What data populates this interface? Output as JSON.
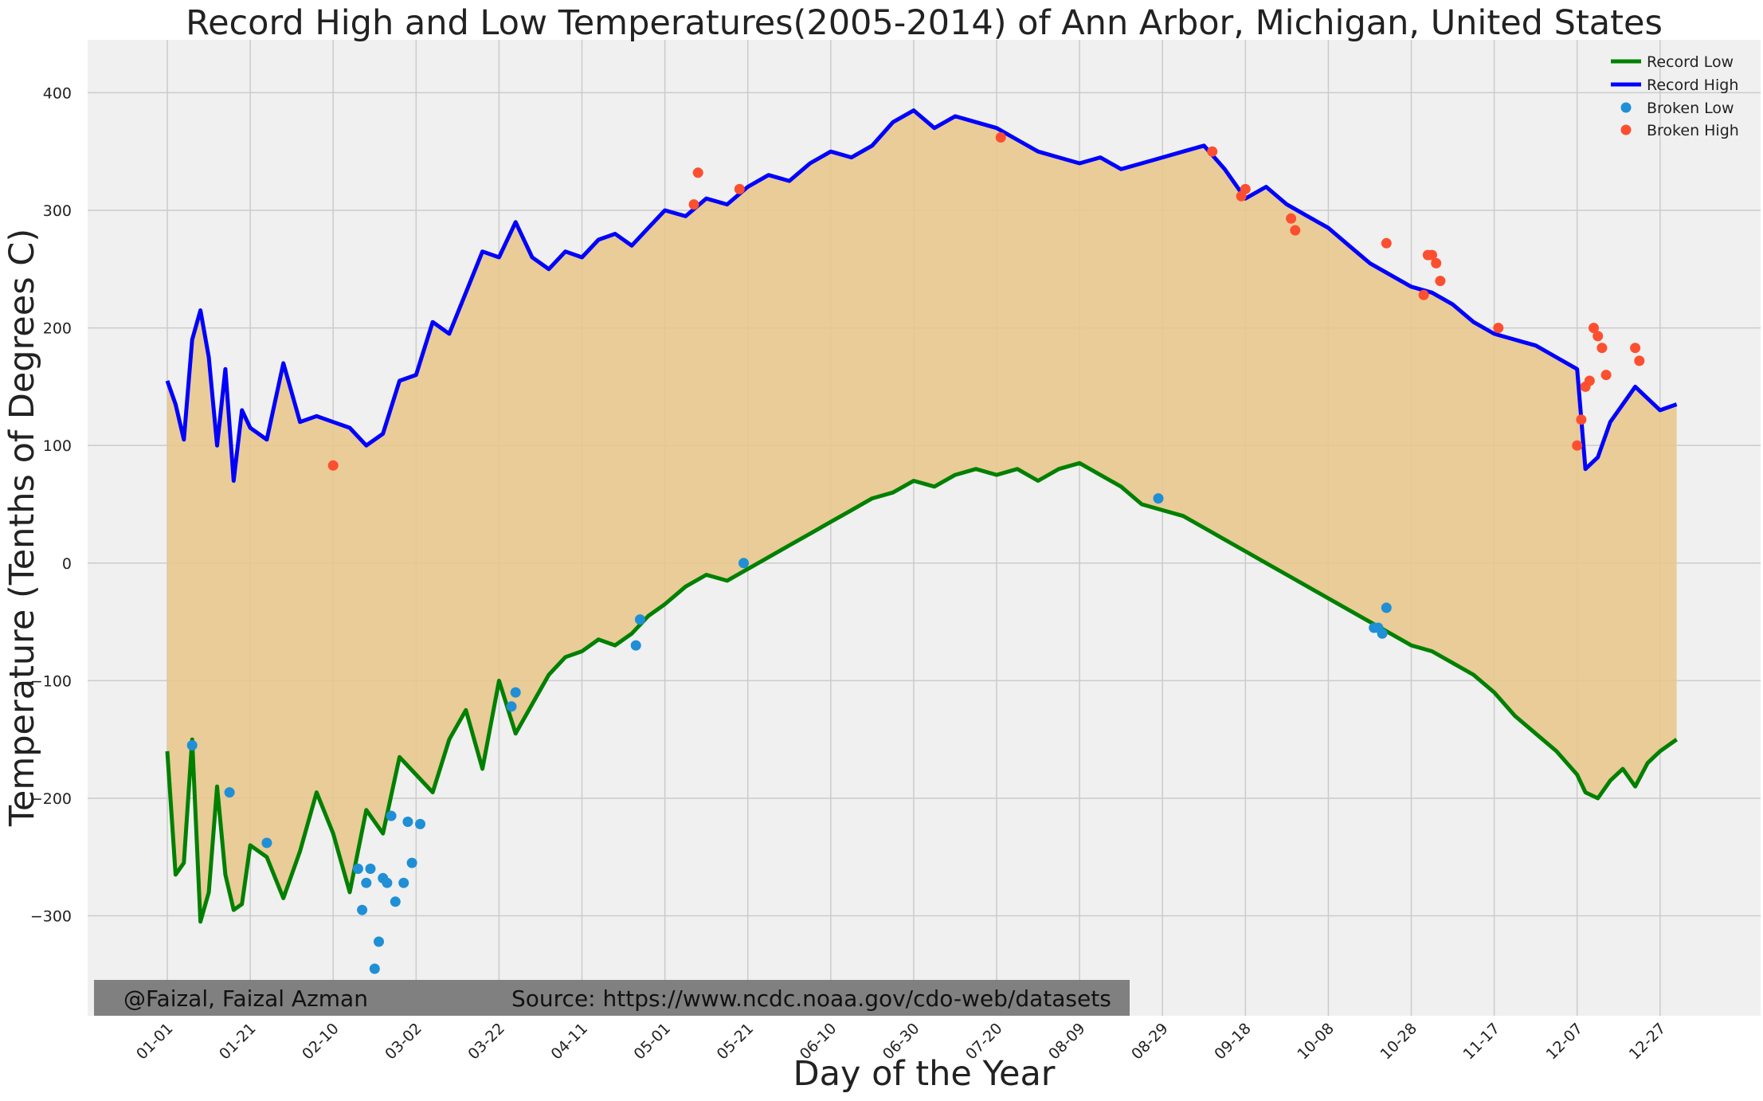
{
  "chart_data": {
    "type": "line",
    "title": "Record High and Low Temperatures(2005-2014) of Ann Arbor, Michigan, United States",
    "xlabel": "Day of the Year",
    "ylabel": "Temperature (Tenths of Degrees C)",
    "ylim": [
      -385,
      445
    ],
    "yticks": [
      -300,
      -200,
      -100,
      0,
      100,
      200,
      300,
      400
    ],
    "ytick_labels": [
      "−300",
      "−200",
      "−100",
      "0",
      "100",
      "200",
      "300",
      "400"
    ],
    "xlim": [
      "12-28 (prev)",
      "01-08 (next)"
    ],
    "xticks": [
      "01-01",
      "01-21",
      "02-10",
      "03-02",
      "03-22",
      "04-11",
      "05-01",
      "05-21",
      "06-10",
      "06-30",
      "07-20",
      "08-09",
      "08-29",
      "09-18",
      "10-08",
      "10-28",
      "11-17",
      "12-07",
      "12-27"
    ],
    "grid": true,
    "fill_between": {
      "between": [
        "Record Low",
        "Record High"
      ],
      "color": "#e8c88e"
    },
    "legend": {
      "position": "top-right",
      "entries": [
        "Record Low",
        "Record High",
        "Broken Low",
        "Broken High"
      ]
    },
    "series": [
      {
        "name": "Record Low",
        "kind": "line",
        "color": "#008000",
        "x": [
          "01-01",
          "01-03",
          "01-05",
          "01-07",
          "01-09",
          "01-11",
          "01-13",
          "01-15",
          "01-17",
          "01-19",
          "01-21",
          "01-25",
          "01-29",
          "02-02",
          "02-06",
          "02-10",
          "02-14",
          "02-18",
          "02-22",
          "02-26",
          "03-02",
          "03-06",
          "03-10",
          "03-14",
          "03-18",
          "03-22",
          "03-26",
          "03-30",
          "04-03",
          "04-07",
          "04-11",
          "04-15",
          "04-19",
          "04-23",
          "04-27",
          "05-01",
          "05-06",
          "05-11",
          "05-16",
          "05-21",
          "05-26",
          "05-31",
          "06-05",
          "06-10",
          "06-15",
          "06-20",
          "06-25",
          "06-30",
          "07-05",
          "07-10",
          "07-15",
          "07-20",
          "07-25",
          "07-30",
          "08-04",
          "08-09",
          "08-14",
          "08-19",
          "08-24",
          "08-29",
          "09-03",
          "09-08",
          "09-13",
          "09-18",
          "09-23",
          "09-28",
          "10-03",
          "10-08",
          "10-13",
          "10-18",
          "10-23",
          "10-28",
          "11-02",
          "11-07",
          "11-12",
          "11-17",
          "11-22",
          "11-27",
          "12-02",
          "12-07",
          "12-09",
          "12-12",
          "12-15",
          "12-18",
          "12-21",
          "12-24",
          "12-27",
          "12-31"
        ],
        "y": [
          -160,
          -265,
          -255,
          -150,
          -305,
          -280,
          -190,
          -265,
          -295,
          -290,
          -240,
          -250,
          -285,
          -245,
          -195,
          -230,
          -280,
          -210,
          -230,
          -165,
          -180,
          -195,
          -150,
          -125,
          -175,
          -100,
          -145,
          -120,
          -95,
          -80,
          -75,
          -65,
          -70,
          -60,
          -45,
          -35,
          -20,
          -10,
          -15,
          -5,
          5,
          15,
          25,
          35,
          45,
          55,
          60,
          70,
          65,
          75,
          80,
          75,
          80,
          70,
          80,
          85,
          75,
          65,
          50,
          45,
          40,
          30,
          20,
          10,
          0,
          -10,
          -20,
          -30,
          -40,
          -50,
          -60,
          -70,
          -75,
          -85,
          -95,
          -110,
          -130,
          -145,
          -160,
          -180,
          -195,
          -200,
          -185,
          -175,
          -190,
          -170,
          -160,
          -150
        ]
      },
      {
        "name": "Record High",
        "kind": "line",
        "color": "#0000ff",
        "x": [
          "01-01",
          "01-03",
          "01-05",
          "01-07",
          "01-09",
          "01-11",
          "01-13",
          "01-15",
          "01-17",
          "01-19",
          "01-21",
          "01-25",
          "01-29",
          "02-02",
          "02-06",
          "02-10",
          "02-14",
          "02-18",
          "02-22",
          "02-26",
          "03-02",
          "03-06",
          "03-10",
          "03-14",
          "03-18",
          "03-22",
          "03-26",
          "03-30",
          "04-03",
          "04-07",
          "04-11",
          "04-15",
          "04-19",
          "04-23",
          "04-27",
          "05-01",
          "05-06",
          "05-11",
          "05-16",
          "05-21",
          "05-26",
          "05-31",
          "06-05",
          "06-10",
          "06-15",
          "06-20",
          "06-25",
          "06-30",
          "07-05",
          "07-10",
          "07-15",
          "07-20",
          "07-25",
          "07-30",
          "08-04",
          "08-09",
          "08-14",
          "08-19",
          "08-24",
          "08-29",
          "09-03",
          "09-08",
          "09-13",
          "09-18",
          "09-23",
          "09-28",
          "10-03",
          "10-08",
          "10-13",
          "10-18",
          "10-23",
          "10-28",
          "11-02",
          "11-07",
          "11-12",
          "11-17",
          "11-22",
          "11-27",
          "12-02",
          "12-07",
          "12-09",
          "12-12",
          "12-15",
          "12-18",
          "12-21",
          "12-24",
          "12-27",
          "12-31"
        ],
        "y": [
          155,
          135,
          105,
          190,
          215,
          175,
          100,
          165,
          70,
          130,
          115,
          105,
          170,
          120,
          125,
          120,
          115,
          100,
          110,
          155,
          160,
          205,
          195,
          230,
          265,
          260,
          290,
          260,
          250,
          265,
          260,
          275,
          280,
          270,
          285,
          300,
          295,
          310,
          305,
          320,
          330,
          325,
          340,
          350,
          345,
          355,
          375,
          385,
          370,
          380,
          375,
          370,
          360,
          350,
          345,
          340,
          345,
          335,
          340,
          345,
          350,
          355,
          335,
          310,
          320,
          305,
          295,
          285,
          270,
          255,
          245,
          235,
          230,
          220,
          205,
          195,
          190,
          185,
          175,
          165,
          80,
          90,
          120,
          135,
          150,
          140,
          130,
          135
        ]
      },
      {
        "name": "Broken Low",
        "kind": "scatter",
        "color": "#1f8fd6",
        "x": [
          "01-07",
          "01-16",
          "01-25",
          "02-16",
          "02-17",
          "02-18",
          "02-19",
          "02-20",
          "02-21",
          "02-22",
          "02-23",
          "02-24",
          "02-25",
          "02-27",
          "02-28",
          "03-01",
          "03-03",
          "03-25",
          "03-26",
          "04-24",
          "04-25",
          "05-20",
          "08-28",
          "10-19",
          "10-20",
          "10-21",
          "10-22"
        ],
        "y": [
          -155,
          -195,
          -238,
          -260,
          -295,
          -272,
          -260,
          -345,
          -322,
          -268,
          -272,
          -215,
          -288,
          -272,
          -220,
          -255,
          -222,
          -122,
          -110,
          -70,
          -48,
          0,
          55,
          -55,
          -55,
          -60,
          -38
        ]
      },
      {
        "name": "Broken High",
        "kind": "scatter",
        "color": "#fc4f30",
        "x": [
          "02-10",
          "05-08",
          "05-09",
          "05-19",
          "07-21",
          "09-10",
          "09-17",
          "09-18",
          "09-29",
          "09-30",
          "10-22",
          "10-31",
          "11-01",
          "11-02",
          "11-03",
          "11-04",
          "11-18",
          "12-07",
          "12-08",
          "12-09",
          "12-10",
          "12-11",
          "12-12",
          "12-13",
          "12-14",
          "12-21",
          "12-22"
        ],
        "y": [
          83,
          305,
          332,
          318,
          362,
          350,
          312,
          318,
          293,
          283,
          272,
          228,
          262,
          262,
          255,
          240,
          200,
          100,
          122,
          150,
          155,
          200,
          193,
          183,
          160,
          183,
          172
        ]
      }
    ]
  },
  "credit": {
    "author": "@Faizal, Faizal Azman",
    "source": "Source: https://www.ncdc.noaa.gov/cdo-web/datasets"
  }
}
